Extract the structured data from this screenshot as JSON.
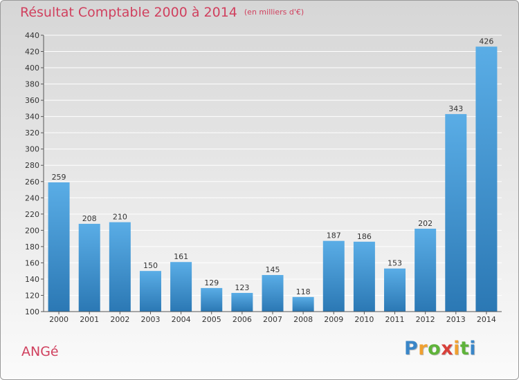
{
  "header": {
    "title": "Résultat Comptable 2000 à 2014",
    "unit": "(en milliers d'€)"
  },
  "commune": "ANGé",
  "logo": {
    "p": "P",
    "r": "r",
    "o": "o",
    "x": "x",
    "i": "i",
    "t": "t",
    "i2": "i"
  },
  "colors": {
    "title": "#d0405e",
    "bar_light": "#5aade6",
    "bar_dark": "#2b78b4",
    "grid": "#ffffff",
    "axis": "#555555"
  },
  "chart_data": {
    "type": "bar",
    "title": "Résultat Comptable 2000 à 2014 (en milliers d'€)",
    "xlabel": "",
    "ylabel": "",
    "categories": [
      "2000",
      "2001",
      "2002",
      "2003",
      "2004",
      "2005",
      "2006",
      "2007",
      "2008",
      "2009",
      "2010",
      "2011",
      "2012",
      "2013",
      "2014"
    ],
    "values": [
      259,
      208,
      210,
      150,
      161,
      129,
      123,
      145,
      118,
      187,
      186,
      153,
      202,
      343,
      426
    ],
    "ylim": [
      100,
      440
    ],
    "yticks": [
      100,
      120,
      140,
      160,
      180,
      200,
      220,
      240,
      260,
      280,
      300,
      320,
      340,
      360,
      380,
      400,
      420,
      440
    ],
    "grid": true
  }
}
